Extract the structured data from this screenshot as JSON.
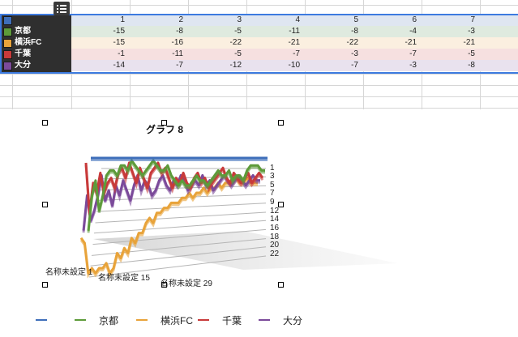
{
  "sheet": {
    "menu_icon": "list-icon",
    "series": [
      {
        "name": "",
        "color": "#3f6fba",
        "values": [
          "1",
          "2",
          "3",
          "4",
          "5",
          "6",
          "7"
        ]
      },
      {
        "name": "京都",
        "color": "#5d9b3a",
        "values": [
          "-15",
          "-8",
          "-5",
          "-11",
          "-8",
          "-4",
          "-3"
        ]
      },
      {
        "name": "横浜FC",
        "color": "#e8a33a",
        "values": [
          "-15",
          "-16",
          "-22",
          "-21",
          "-22",
          "-21",
          "-21"
        ]
      },
      {
        "name": "千葉",
        "color": "#c83a3a",
        "values": [
          "-1",
          "-11",
          "-5",
          "-7",
          "-3",
          "-7",
          "-5"
        ]
      },
      {
        "name": "大分",
        "color": "#7b4a9a",
        "values": [
          "-14",
          "-7",
          "-12",
          "-10",
          "-7",
          "-3",
          "-8"
        ]
      }
    ],
    "row_colors": [
      "#dfe6f1",
      "#dfeadf",
      "#fbefe0",
      "#f6e0e0",
      "#e9e2ee"
    ]
  },
  "chart_data": {
    "type": "line",
    "title": "グラフ 8",
    "x_tick_labels": [
      "名称未設定 1",
      "名称未設定 15",
      "名称未設定 29"
    ],
    "y_tick_labels": [
      "1",
      "3",
      "5",
      "7",
      "9",
      "12",
      "14",
      "16",
      "18",
      "20",
      "22"
    ],
    "series": [
      {
        "name": "",
        "color": "#3f6fba",
        "values": [
          1,
          1,
          1,
          1,
          1,
          1,
          1,
          1,
          1,
          1,
          1,
          1,
          1,
          1,
          1,
          1,
          1,
          1,
          1,
          1,
          1,
          1,
          1,
          1,
          1,
          1,
          1,
          1,
          1,
          1,
          1,
          1,
          1,
          1,
          1,
          1,
          1,
          1,
          1,
          1,
          1,
          1,
          1,
          1,
          1,
          1,
          1,
          1,
          1,
          1
        ]
      },
      {
        "name": "京都",
        "color": "#5d9b3a",
        "values": [
          -15,
          -8,
          -5,
          -11,
          -8,
          -4,
          -3,
          -3,
          -4,
          -2,
          -2,
          -3,
          -1,
          -2,
          -3,
          -4,
          -3,
          -2,
          -1,
          -2,
          -3,
          -3,
          -2,
          -4,
          -5,
          -6,
          -5,
          -6,
          -6,
          -5,
          -4,
          -5,
          -5,
          -6,
          -5,
          -4,
          -3,
          -4,
          -4,
          -3,
          -5,
          -4,
          -4,
          -5,
          -3,
          -2,
          -2,
          -2,
          -3,
          -3
        ]
      },
      {
        "name": "横浜FC",
        "color": "#e8a33a",
        "values": [
          -15,
          -16,
          -22,
          -21,
          -22,
          -21,
          -21,
          -20,
          -22,
          -21,
          -18,
          -19,
          -17,
          -18,
          -15,
          -16,
          -14,
          -14,
          -12,
          -11,
          -12,
          -10,
          -10,
          -9,
          -9,
          -8,
          -8,
          -8,
          -7,
          -7,
          -6,
          -7,
          -6,
          -6,
          -5,
          -6,
          -5,
          -5,
          -4,
          -5,
          -4,
          -4,
          -4,
          -3,
          -4,
          -4,
          -3,
          -4,
          -4,
          -4
        ]
      },
      {
        "name": "千葉",
        "color": "#c83a3a",
        "values": [
          -1,
          -11,
          -5,
          -7,
          -3,
          -7,
          -5,
          -4,
          -6,
          -3,
          -2,
          -4,
          -1,
          -3,
          -5,
          -2,
          -4,
          -6,
          -3,
          -2,
          -1,
          -3,
          -2,
          -4,
          -6,
          -4,
          -5,
          -3,
          -5,
          -6,
          -4,
          -3,
          -5,
          -4,
          -6,
          -5,
          -4,
          -3,
          -2,
          -4,
          -5,
          -3,
          -4,
          -5,
          -4,
          -3,
          -5,
          -4,
          -3,
          -4
        ]
      },
      {
        "name": "大分",
        "color": "#7b4a9a",
        "values": [
          -14,
          -7,
          -12,
          -10,
          -7,
          -3,
          -8,
          -6,
          -9,
          -5,
          -7,
          -4,
          -6,
          -8,
          -5,
          -3,
          -6,
          -4,
          -5,
          -7,
          -6,
          -4,
          -3,
          -5,
          -6,
          -4,
          -5,
          -3,
          -4,
          -6,
          -5,
          -4,
          -5,
          -3,
          -5,
          -4,
          -6,
          -5,
          -4,
          -3,
          -4,
          -5,
          -4,
          -3,
          -4,
          -5,
          -4,
          -3,
          -4,
          -4
        ]
      }
    ],
    "legend_position": "bottom",
    "grid": true,
    "style": "3d-ribbon"
  }
}
